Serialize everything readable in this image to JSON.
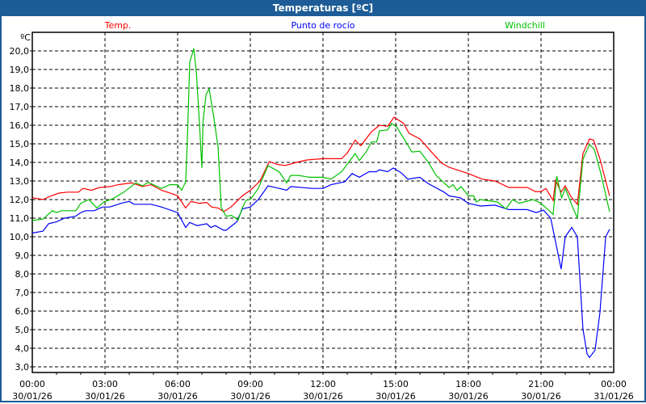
{
  "window": {
    "title": "Temperaturas [ºC]"
  },
  "chart_data": {
    "type": "line",
    "title": "Temperaturas [ºC]",
    "ylabel": "ºC",
    "xlabel": "",
    "ylim": [
      2.7,
      21.0
    ],
    "xlim_hours": [
      0,
      24
    ],
    "grid": true,
    "yticks": [
      "20,0",
      "19,0",
      "18,0",
      "17,0",
      "16,0",
      "15,0",
      "14,0",
      "13,0",
      "12,0",
      "11,0",
      "10,0",
      "9,0",
      "8,0",
      "7,0",
      "6,0",
      "5,0",
      "4,0",
      "3,0"
    ],
    "ytick_values": [
      20,
      19,
      18,
      17,
      16,
      15,
      14,
      13,
      12,
      11,
      10,
      9,
      8,
      7,
      6,
      5,
      4,
      3
    ],
    "xticks": [
      {
        "hour": 0,
        "time": "00:00",
        "date": "30/01/26"
      },
      {
        "hour": 3,
        "time": "03:00",
        "date": "30/01/26"
      },
      {
        "hour": 6,
        "time": "06:00",
        "date": "30/01/26"
      },
      {
        "hour": 9,
        "time": "09:00",
        "date": "30/01/26"
      },
      {
        "hour": 12,
        "time": "12:00",
        "date": "30/01/26"
      },
      {
        "hour": 15,
        "time": "15:00",
        "date": "30/01/26"
      },
      {
        "hour": 18,
        "time": "18:00",
        "date": "30/01/26"
      },
      {
        "hour": 21,
        "time": "21:00",
        "date": "30/01/26"
      },
      {
        "hour": 24,
        "time": "00:00",
        "date": "31/01/26"
      }
    ],
    "series": [
      {
        "name": "Temp.",
        "color": "#ff0000",
        "legend_pos": "top-left",
        "points": [
          [
            0,
            12.1
          ],
          [
            0.44,
            12.0
          ],
          [
            0.78,
            12.2
          ],
          [
            1.1,
            12.35
          ],
          [
            1.44,
            12.4
          ],
          [
            1.9,
            12.4
          ],
          [
            2.1,
            12.6
          ],
          [
            2.44,
            12.5
          ],
          [
            2.78,
            12.65
          ],
          [
            3.2,
            12.7
          ],
          [
            3.55,
            12.8
          ],
          [
            4.1,
            12.9
          ],
          [
            4.55,
            12.7
          ],
          [
            4.9,
            12.8
          ],
          [
            5.33,
            12.5
          ],
          [
            5.8,
            12.3
          ],
          [
            6.0,
            12.2
          ],
          [
            6.33,
            11.55
          ],
          [
            6.55,
            11.9
          ],
          [
            6.9,
            11.8
          ],
          [
            7.2,
            11.85
          ],
          [
            7.4,
            11.6
          ],
          [
            7.67,
            11.55
          ],
          [
            7.9,
            11.35
          ],
          [
            8.2,
            11.6
          ],
          [
            8.67,
            12.2
          ],
          [
            9.0,
            12.5
          ],
          [
            9.4,
            13.0
          ],
          [
            9.78,
            14.04
          ],
          [
            10.1,
            13.9
          ],
          [
            10.43,
            13.83
          ],
          [
            10.9,
            14.0
          ],
          [
            11.33,
            14.13
          ],
          [
            12.0,
            14.2
          ],
          [
            12.77,
            14.2
          ],
          [
            13.0,
            14.5
          ],
          [
            13.33,
            15.2
          ],
          [
            13.56,
            14.9
          ],
          [
            14.0,
            15.65
          ],
          [
            14.33,
            16.0
          ],
          [
            14.67,
            15.95
          ],
          [
            14.93,
            16.43
          ],
          [
            15.33,
            16.1
          ],
          [
            15.55,
            15.57
          ],
          [
            16.0,
            15.26
          ],
          [
            16.45,
            14.6
          ],
          [
            16.9,
            13.96
          ],
          [
            17.2,
            13.74
          ],
          [
            18.0,
            13.4
          ],
          [
            18.57,
            13.1
          ],
          [
            19.1,
            13.0
          ],
          [
            19.67,
            12.65
          ],
          [
            20.43,
            12.65
          ],
          [
            20.77,
            12.43
          ],
          [
            21.0,
            12.43
          ],
          [
            21.2,
            12.6
          ],
          [
            21.5,
            11.95
          ],
          [
            21.6,
            13.04
          ],
          [
            21.83,
            12.4
          ],
          [
            22.0,
            12.74
          ],
          [
            22.23,
            12.17
          ],
          [
            22.5,
            11.74
          ],
          [
            22.73,
            14.48
          ],
          [
            23.0,
            15.26
          ],
          [
            23.17,
            15.2
          ],
          [
            23.43,
            14.2
          ],
          [
            23.83,
            12.2
          ]
        ]
      },
      {
        "name": "Punto de rocío",
        "color": "#0000ff",
        "legend_pos": "top-center",
        "points": [
          [
            0,
            10.2
          ],
          [
            0.44,
            10.3
          ],
          [
            0.67,
            10.7
          ],
          [
            1.0,
            10.8
          ],
          [
            1.33,
            11.0
          ],
          [
            1.78,
            11.1
          ],
          [
            2.0,
            11.3
          ],
          [
            2.2,
            11.4
          ],
          [
            2.55,
            11.4
          ],
          [
            2.9,
            11.6
          ],
          [
            3.2,
            11.6
          ],
          [
            3.67,
            11.8
          ],
          [
            4.0,
            11.9
          ],
          [
            4.2,
            11.75
          ],
          [
            4.9,
            11.75
          ],
          [
            5.33,
            11.6
          ],
          [
            6.0,
            11.3
          ],
          [
            6.33,
            10.5
          ],
          [
            6.5,
            10.77
          ],
          [
            6.8,
            10.6
          ],
          [
            7.2,
            10.7
          ],
          [
            7.37,
            10.5
          ],
          [
            7.55,
            10.6
          ],
          [
            7.9,
            10.35
          ],
          [
            8.0,
            10.35
          ],
          [
            8.44,
            10.8
          ],
          [
            8.67,
            11.5
          ],
          [
            9.0,
            11.6
          ],
          [
            9.33,
            12.0
          ],
          [
            9.73,
            12.74
          ],
          [
            10.2,
            12.6
          ],
          [
            10.5,
            12.5
          ],
          [
            10.67,
            12.7
          ],
          [
            11.55,
            12.6
          ],
          [
            12.0,
            12.6
          ],
          [
            12.33,
            12.8
          ],
          [
            12.9,
            12.96
          ],
          [
            13.2,
            13.4
          ],
          [
            13.5,
            13.2
          ],
          [
            13.9,
            13.5
          ],
          [
            14.2,
            13.5
          ],
          [
            14.33,
            13.6
          ],
          [
            14.67,
            13.5
          ],
          [
            14.9,
            13.7
          ],
          [
            15.22,
            13.45
          ],
          [
            15.5,
            13.1
          ],
          [
            16.0,
            13.2
          ],
          [
            16.33,
            12.87
          ],
          [
            17.0,
            12.4
          ],
          [
            17.2,
            12.2
          ],
          [
            17.66,
            12.1
          ],
          [
            18.0,
            11.8
          ],
          [
            18.5,
            11.65
          ],
          [
            19.1,
            11.7
          ],
          [
            19.67,
            11.46
          ],
          [
            20.43,
            11.46
          ],
          [
            20.8,
            11.3
          ],
          [
            21.1,
            11.43
          ],
          [
            21.4,
            11.0
          ],
          [
            21.83,
            8.26
          ],
          [
            22.0,
            10.0
          ],
          [
            22.27,
            10.5
          ],
          [
            22.5,
            10.0
          ],
          [
            22.73,
            5.04
          ],
          [
            22.9,
            3.7
          ],
          [
            23.0,
            3.5
          ],
          [
            23.23,
            3.9
          ],
          [
            23.43,
            5.9
          ],
          [
            23.67,
            10.0
          ],
          [
            23.83,
            10.4
          ]
        ]
      },
      {
        "name": "Windchill",
        "color": "#00c000",
        "legend_pos": "top-right",
        "points": [
          [
            0,
            10.87
          ],
          [
            0.44,
            10.95
          ],
          [
            0.83,
            11.4
          ],
          [
            1.0,
            11.3
          ],
          [
            1.2,
            11.4
          ],
          [
            1.8,
            11.4
          ],
          [
            2.0,
            11.8
          ],
          [
            2.33,
            12.0
          ],
          [
            2.67,
            11.55
          ],
          [
            2.95,
            11.87
          ],
          [
            3.33,
            12.05
          ],
          [
            3.78,
            12.4
          ],
          [
            4.28,
            12.9
          ],
          [
            4.55,
            12.74
          ],
          [
            4.78,
            12.93
          ],
          [
            5.33,
            12.6
          ],
          [
            5.67,
            12.8
          ],
          [
            6.0,
            12.8
          ],
          [
            6.17,
            12.5
          ],
          [
            6.33,
            12.96
          ],
          [
            6.39,
            14.8
          ],
          [
            6.5,
            19.4
          ],
          [
            6.67,
            20.13
          ],
          [
            6.78,
            18.7
          ],
          [
            6.9,
            16.1
          ],
          [
            7.0,
            13.7
          ],
          [
            7.05,
            16.2
          ],
          [
            7.17,
            17.65
          ],
          [
            7.3,
            17.96
          ],
          [
            7.5,
            16.35
          ],
          [
            7.67,
            14.8
          ],
          [
            7.8,
            11.57
          ],
          [
            8.0,
            11.1
          ],
          [
            8.22,
            11.15
          ],
          [
            8.5,
            10.9
          ],
          [
            8.67,
            11.56
          ],
          [
            8.83,
            11.96
          ],
          [
            9.0,
            12.0
          ],
          [
            9.33,
            12.6
          ],
          [
            9.73,
            13.83
          ],
          [
            10.2,
            13.48
          ],
          [
            10.5,
            12.9
          ],
          [
            10.67,
            13.3
          ],
          [
            11.0,
            13.3
          ],
          [
            11.44,
            13.2
          ],
          [
            12.0,
            13.2
          ],
          [
            12.33,
            13.1
          ],
          [
            12.77,
            13.5
          ],
          [
            13.33,
            14.48
          ],
          [
            13.5,
            14.1
          ],
          [
            13.78,
            14.56
          ],
          [
            14.0,
            15.1
          ],
          [
            14.22,
            15.1
          ],
          [
            14.33,
            15.7
          ],
          [
            14.67,
            15.75
          ],
          [
            14.83,
            16.1
          ],
          [
            15.05,
            15.9
          ],
          [
            15.33,
            15.3
          ],
          [
            15.67,
            14.56
          ],
          [
            16.0,
            14.6
          ],
          [
            16.33,
            14.04
          ],
          [
            16.67,
            13.3
          ],
          [
            17.2,
            12.65
          ],
          [
            17.37,
            12.8
          ],
          [
            17.53,
            12.5
          ],
          [
            17.7,
            12.7
          ],
          [
            18.0,
            12.2
          ],
          [
            18.22,
            12.2
          ],
          [
            18.33,
            11.87
          ],
          [
            18.5,
            12.0
          ],
          [
            19.2,
            11.87
          ],
          [
            19.55,
            11.5
          ],
          [
            19.83,
            12.0
          ],
          [
            20.1,
            11.8
          ],
          [
            20.67,
            12.0
          ],
          [
            21.0,
            11.8
          ],
          [
            21.5,
            11.2
          ],
          [
            21.65,
            13.26
          ],
          [
            21.85,
            12.1
          ],
          [
            22.0,
            12.6
          ],
          [
            22.3,
            11.6
          ],
          [
            22.5,
            11.0
          ],
          [
            22.73,
            14.17
          ],
          [
            23.0,
            14.96
          ],
          [
            23.2,
            14.7
          ],
          [
            23.45,
            13.5
          ],
          [
            23.83,
            11.35
          ]
        ]
      }
    ]
  }
}
